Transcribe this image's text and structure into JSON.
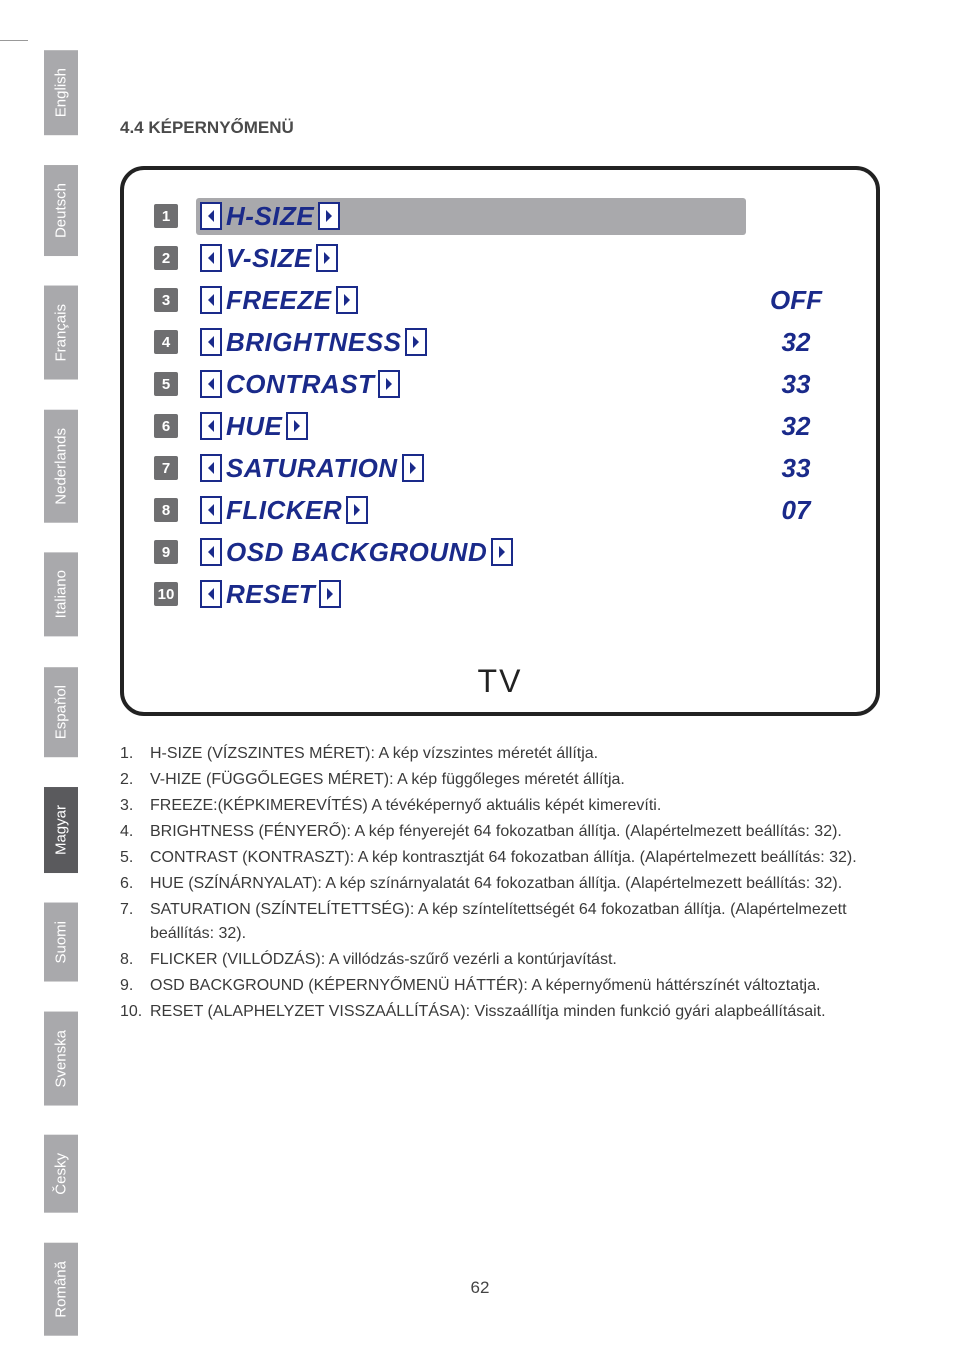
{
  "section_title": "4.4 KÉPERNYŐMENÜ",
  "languages": [
    {
      "label": "English",
      "active": false
    },
    {
      "label": "Deutsch",
      "active": false
    },
    {
      "label": "Français",
      "active": false
    },
    {
      "label": "Nederlands",
      "active": false
    },
    {
      "label": "Italiano",
      "active": false
    },
    {
      "label": "Espaňol",
      "active": false
    },
    {
      "label": "Magyar",
      "active": true
    },
    {
      "label": "Suomi",
      "active": false
    },
    {
      "label": "Svenska",
      "active": false
    },
    {
      "label": "Česky",
      "active": false
    },
    {
      "label": "Română",
      "active": false
    }
  ],
  "osd": {
    "rows": [
      {
        "num": "1",
        "label": "H-SIZE",
        "value": "",
        "highlight": true
      },
      {
        "num": "2",
        "label": "V-SIZE",
        "value": "",
        "highlight": false
      },
      {
        "num": "3",
        "label": "FREEZE",
        "value": "OFF",
        "highlight": false
      },
      {
        "num": "4",
        "label": "BRIGHTNESS",
        "value": "32",
        "highlight": false
      },
      {
        "num": "5",
        "label": "CONTRAST",
        "value": "33",
        "highlight": false
      },
      {
        "num": "6",
        "label": "HUE",
        "value": "32",
        "highlight": false
      },
      {
        "num": "7",
        "label": "SATURATION",
        "value": "33",
        "highlight": false
      },
      {
        "num": "8",
        "label": "FLICKER",
        "value": "07",
        "highlight": false
      },
      {
        "num": "9",
        "label": "OSD BACKGROUND",
        "value": "",
        "highlight": false
      },
      {
        "num": "10",
        "label": "RESET",
        "value": "",
        "highlight": false
      }
    ],
    "footer": "TV",
    "colors": {
      "label_color": "#1a2a8a",
      "frame_border": "#222222",
      "highlight_bg": "#a9a9ac",
      "num_bg": "#6e6e70"
    }
  },
  "descriptions": [
    {
      "num": "1.",
      "text": "H-SIZE (VÍZSZINTES MÉRET): A kép vízszintes méretét állítja."
    },
    {
      "num": "2.",
      "text": "V-HIZE (FÜGGŐLEGES MÉRET): A kép függőleges méretét állítja."
    },
    {
      "num": "3.",
      "text": "FREEZE:(KÉPKIMEREVÍTÉS) A tévéképernyő aktuális képét kimerevíti."
    },
    {
      "num": "4.",
      "text": "BRIGHTNESS (FÉNYERŐ): A kép fényerejét 64 fokozatban állítja. (Alapértelmezett beállítás: 32)."
    },
    {
      "num": "5.",
      "text": "CONTRAST (KONTRASZT): A kép kontrasztját 64 fokozatban állítja. (Alapértelmezett beállítás: 32)."
    },
    {
      "num": "6.",
      "text": "HUE (SZÍNÁRNYALAT): A kép színárnyalatát 64 fokozatban állítja. (Alapértelmezett beállítás: 32)."
    },
    {
      "num": "7.",
      "text": "SATURATION (SZÍNTELÍTETTSÉG): A kép színtelítettségét 64 fokozatban állítja. (Alapértelmezett beállítás: 32)."
    },
    {
      "num": "8.",
      "text": "FLICKER (VILLÓDZÁS): A villódzás-szűrő vezérli a kontúrjavítást."
    },
    {
      "num": "9.",
      "text": "OSD BACKGROUND (KÉPERNYŐMENÜ HÁTTÉR): A képernyőmenü háttérszínét változtatja."
    },
    {
      "num": "10.",
      "text": "RESET (ALAPHELYZET VISSZAÁLLÍTÁSA): Visszaállítja minden funkció gyári alapbeállításait."
    }
  ],
  "page_number": "62"
}
